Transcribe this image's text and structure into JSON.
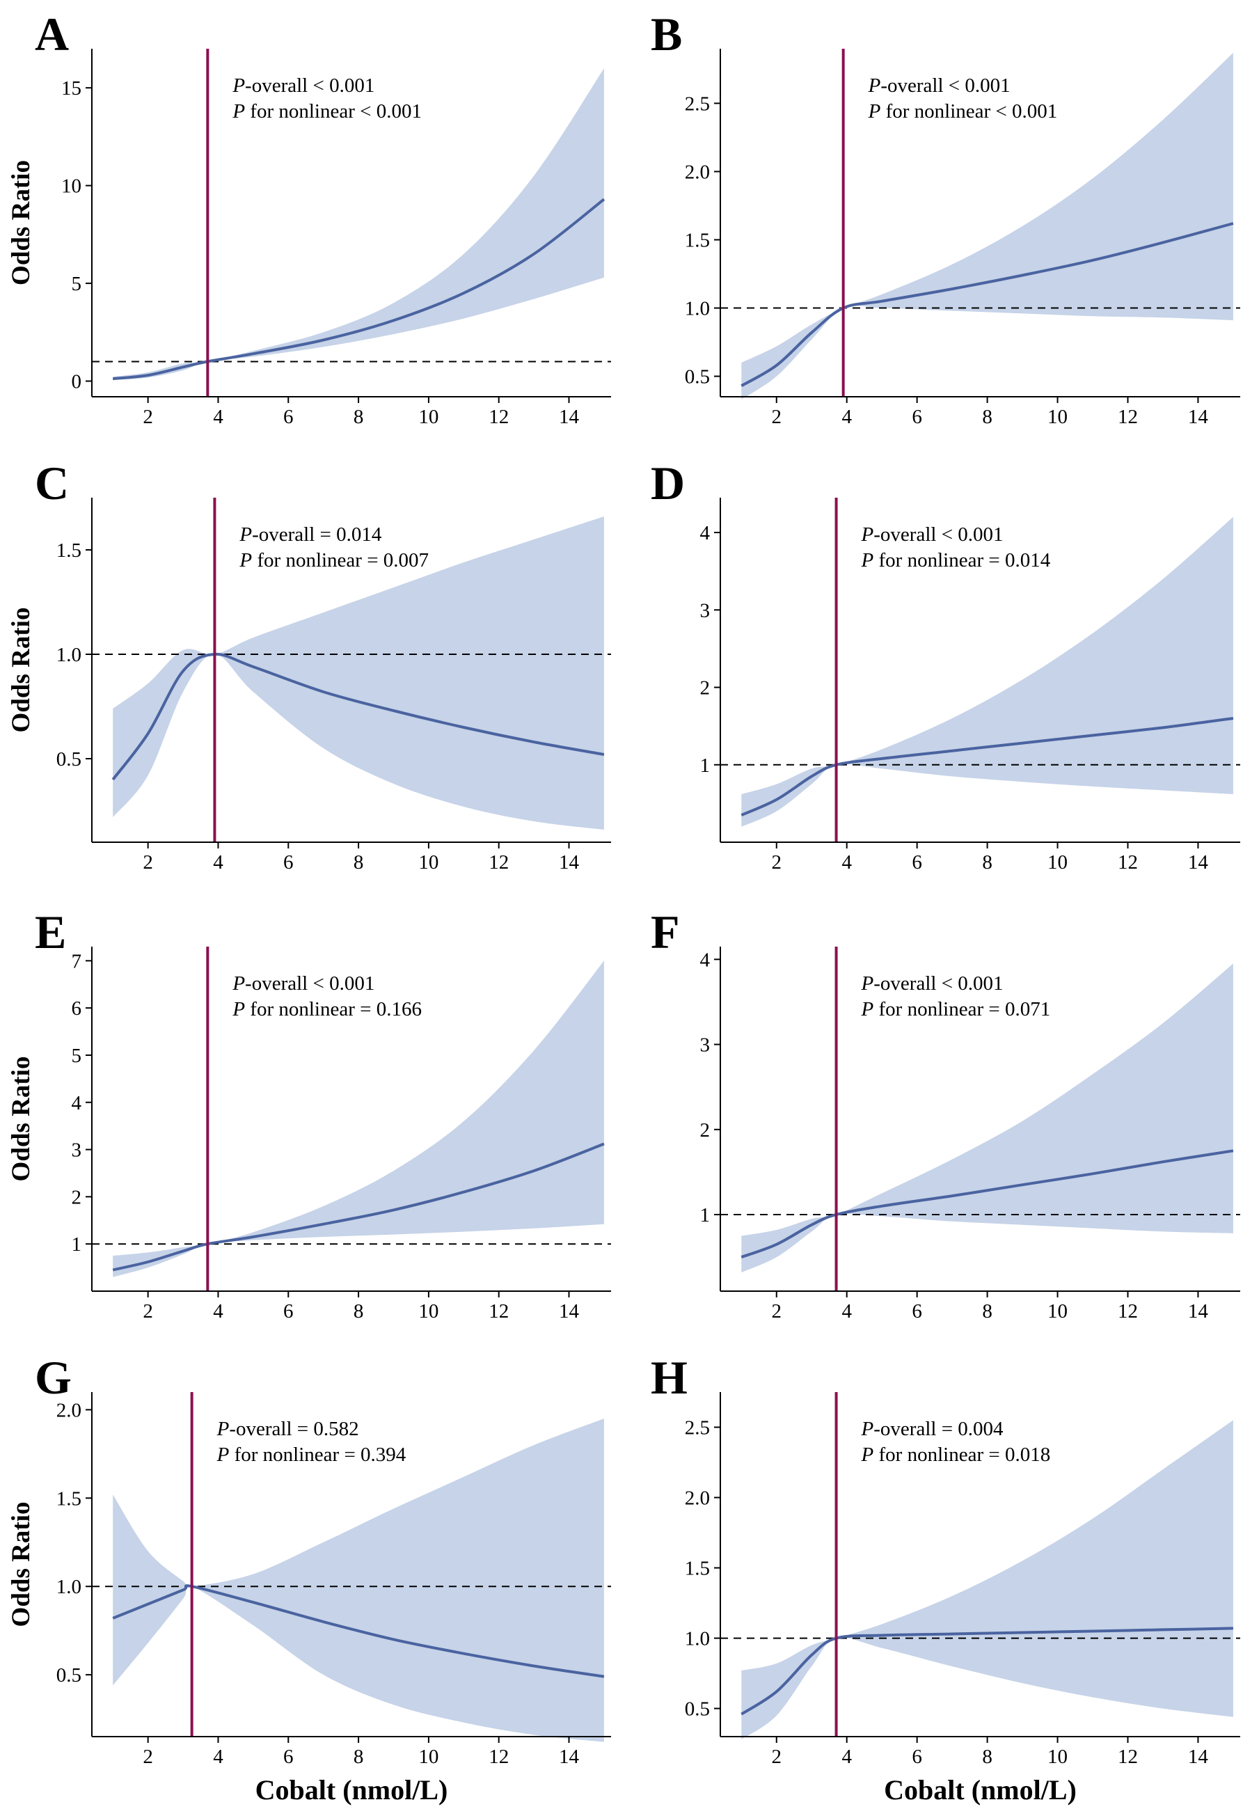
{
  "chart_data": [
    {
      "panel": "A",
      "type": "line",
      "ylabel": "Odds Ratio",
      "xlabel": "",
      "xlim": [
        0.4,
        15.2
      ],
      "ylim": [
        -0.8,
        17.0
      ],
      "xticks": [
        "2",
        "4",
        "6",
        "8",
        "10",
        "12",
        "14"
      ],
      "yticks": [
        "0",
        "5",
        "10",
        "15"
      ],
      "ref_y": 1,
      "knot_x": 3.7,
      "p_overall": "P-overall < 0.001",
      "p_nonlinear": "P for nonlinear < 0.001",
      "x": [
        1,
        2,
        3,
        3.7,
        5,
        7,
        9,
        11,
        13,
        15
      ],
      "y": [
        0.12,
        0.3,
        0.72,
        1.0,
        1.4,
        2.1,
        3.1,
        4.5,
        6.5,
        9.3
      ],
      "lower": [
        0.06,
        0.18,
        0.55,
        1.0,
        1.25,
        1.75,
        2.4,
        3.2,
        4.2,
        5.3
      ],
      "upper": [
        0.22,
        0.45,
        0.9,
        1.0,
        1.55,
        2.5,
        4.0,
        6.5,
        10.5,
        16.0
      ]
    },
    {
      "panel": "B",
      "type": "line",
      "ylabel": "",
      "xlabel": "",
      "xlim": [
        0.4,
        15.2
      ],
      "ylim": [
        0.35,
        2.9
      ],
      "xticks": [
        "2",
        "4",
        "6",
        "8",
        "10",
        "12",
        "14"
      ],
      "yticks": [
        "0.5",
        "1.0",
        "1.5",
        "2.0",
        "2.5"
      ],
      "ref_y": 1.0,
      "knot_x": 3.9,
      "p_overall": "P-overall < 0.001",
      "p_nonlinear": "P for nonlinear < 0.001",
      "x": [
        1,
        2,
        3,
        3.9,
        5,
        7,
        9,
        11,
        13,
        15
      ],
      "y": [
        0.43,
        0.58,
        0.82,
        1.0,
        1.05,
        1.14,
        1.24,
        1.35,
        1.48,
        1.62
      ],
      "lower": [
        0.33,
        0.5,
        0.77,
        1.0,
        1.0,
        0.98,
        0.96,
        0.94,
        0.93,
        0.91
      ],
      "upper": [
        0.6,
        0.72,
        0.88,
        1.0,
        1.1,
        1.32,
        1.6,
        1.95,
        2.38,
        2.87
      ]
    },
    {
      "panel": "C",
      "type": "line",
      "ylabel": "Odds Ratio",
      "xlabel": "",
      "xlim": [
        0.4,
        15.2
      ],
      "ylim": [
        0.1,
        1.75
      ],
      "xticks": [
        "2",
        "4",
        "6",
        "8",
        "10",
        "12",
        "14"
      ],
      "yticks": [
        "0.5",
        "1.0",
        "1.5"
      ],
      "ref_y": 1.0,
      "knot_x": 3.9,
      "p_overall": "P-overall = 0.014",
      "p_nonlinear": "P for nonlinear = 0.007",
      "x": [
        1,
        2,
        3,
        3.9,
        5,
        7,
        9,
        11,
        13,
        15
      ],
      "y": [
        0.4,
        0.62,
        0.92,
        1.0,
        0.94,
        0.82,
        0.73,
        0.65,
        0.58,
        0.52
      ],
      "lower": [
        0.22,
        0.42,
        0.82,
        1.0,
        0.82,
        0.55,
        0.38,
        0.27,
        0.2,
        0.16
      ],
      "upper": [
        0.74,
        0.86,
        1.02,
        1.0,
        1.08,
        1.2,
        1.32,
        1.44,
        1.55,
        1.66
      ]
    },
    {
      "panel": "D",
      "type": "line",
      "ylabel": "",
      "xlabel": "",
      "xlim": [
        0.4,
        15.2
      ],
      "ylim": [
        0.0,
        4.45
      ],
      "xticks": [
        "2",
        "4",
        "6",
        "8",
        "10",
        "12",
        "14"
      ],
      "yticks": [
        "1",
        "2",
        "3",
        "4"
      ],
      "ref_y": 1,
      "knot_x": 3.7,
      "p_overall": "P-overall < 0.001",
      "p_nonlinear": "P for nonlinear = 0.014",
      "x": [
        1,
        2,
        3,
        3.7,
        5,
        7,
        9,
        11,
        13,
        15
      ],
      "y": [
        0.35,
        0.55,
        0.85,
        1.0,
        1.08,
        1.18,
        1.28,
        1.38,
        1.48,
        1.6
      ],
      "lower": [
        0.2,
        0.4,
        0.75,
        1.0,
        0.95,
        0.85,
        0.78,
        0.72,
        0.67,
        0.62
      ],
      "upper": [
        0.62,
        0.75,
        0.95,
        1.0,
        1.2,
        1.6,
        2.1,
        2.7,
        3.4,
        4.2
      ]
    },
    {
      "panel": "E",
      "type": "line",
      "ylabel": "Odds Ratio",
      "xlabel": "",
      "xlim": [
        0.4,
        15.2
      ],
      "ylim": [
        0.0,
        7.3
      ],
      "xticks": [
        "2",
        "4",
        "6",
        "8",
        "10",
        "12",
        "14"
      ],
      "yticks": [
        "1",
        "2",
        "3",
        "4",
        "5",
        "6",
        "7"
      ],
      "ref_y": 1,
      "knot_x": 3.7,
      "p_overall": "P-overall < 0.001",
      "p_nonlinear": "P for nonlinear = 0.166",
      "x": [
        1,
        2,
        3,
        3.7,
        5,
        7,
        9,
        11,
        13,
        15
      ],
      "y": [
        0.45,
        0.62,
        0.85,
        1.0,
        1.15,
        1.42,
        1.72,
        2.1,
        2.55,
        3.12
      ],
      "lower": [
        0.3,
        0.5,
        0.78,
        1.0,
        1.08,
        1.15,
        1.2,
        1.26,
        1.33,
        1.42
      ],
      "upper": [
        0.75,
        0.82,
        0.93,
        1.0,
        1.25,
        1.8,
        2.55,
        3.6,
        5.1,
        7.0
      ]
    },
    {
      "panel": "F",
      "type": "line",
      "ylabel": "",
      "xlabel": "",
      "xlim": [
        0.4,
        15.2
      ],
      "ylim": [
        0.1,
        4.15
      ],
      "xticks": [
        "2",
        "4",
        "6",
        "8",
        "10",
        "12",
        "14"
      ],
      "yticks": [
        "1",
        "2",
        "3",
        "4"
      ],
      "ref_y": 1,
      "knot_x": 3.7,
      "p_overall": "P-overall < 0.001",
      "p_nonlinear": "P for nonlinear = 0.071",
      "x": [
        1,
        2,
        3,
        3.7,
        5,
        7,
        9,
        11,
        13,
        15
      ],
      "y": [
        0.5,
        0.65,
        0.88,
        1.0,
        1.1,
        1.22,
        1.35,
        1.48,
        1.62,
        1.75
      ],
      "lower": [
        0.32,
        0.5,
        0.8,
        1.0,
        0.98,
        0.92,
        0.88,
        0.84,
        0.8,
        0.78
      ],
      "upper": [
        0.75,
        0.82,
        0.95,
        1.0,
        1.25,
        1.65,
        2.1,
        2.65,
        3.25,
        3.95
      ]
    },
    {
      "panel": "G",
      "type": "line",
      "ylabel": "Odds Ratio",
      "xlabel": "Cobalt (nmol/L)",
      "xlim": [
        0.4,
        15.2
      ],
      "ylim": [
        0.15,
        2.1
      ],
      "xticks": [
        "2",
        "4",
        "6",
        "8",
        "10",
        "12",
        "14"
      ],
      "yticks": [
        "0.5",
        "1.0",
        "1.5",
        "2.0"
      ],
      "ref_y": 1.0,
      "knot_x": 3.25,
      "p_overall": "P-overall = 0.582",
      "p_nonlinear": "P for nonlinear = 0.394",
      "x": [
        1,
        2,
        3,
        3.25,
        5,
        7,
        9,
        11,
        13,
        15
      ],
      "y": [
        0.82,
        0.9,
        0.98,
        1.0,
        0.91,
        0.8,
        0.7,
        0.62,
        0.55,
        0.49
      ],
      "lower": [
        0.44,
        0.68,
        0.93,
        1.0,
        0.78,
        0.5,
        0.33,
        0.23,
        0.16,
        0.12
      ],
      "upper": [
        1.52,
        1.2,
        1.03,
        1.0,
        1.07,
        1.25,
        1.44,
        1.62,
        1.8,
        1.95
      ]
    },
    {
      "panel": "H",
      "type": "line",
      "ylabel": "",
      "xlabel": "Cobalt (nmol/L)",
      "xlim": [
        0.4,
        15.2
      ],
      "ylim": [
        0.3,
        2.75
      ],
      "xticks": [
        "2",
        "4",
        "6",
        "8",
        "10",
        "12",
        "14"
      ],
      "yticks": [
        "0.5",
        "1.0",
        "1.5",
        "2.0",
        "2.5"
      ],
      "ref_y": 1.0,
      "knot_x": 3.7,
      "p_overall": "P-overall = 0.004",
      "p_nonlinear": "P for nonlinear = 0.018",
      "x": [
        1,
        2,
        3,
        3.7,
        5,
        7,
        9,
        11,
        13,
        15
      ],
      "y": [
        0.46,
        0.62,
        0.88,
        1.0,
        1.02,
        1.03,
        1.04,
        1.05,
        1.06,
        1.07
      ],
      "lower": [
        0.28,
        0.45,
        0.8,
        1.0,
        0.93,
        0.8,
        0.68,
        0.58,
        0.5,
        0.44
      ],
      "upper": [
        0.77,
        0.82,
        0.95,
        1.0,
        1.1,
        1.3,
        1.55,
        1.85,
        2.2,
        2.55
      ]
    }
  ]
}
